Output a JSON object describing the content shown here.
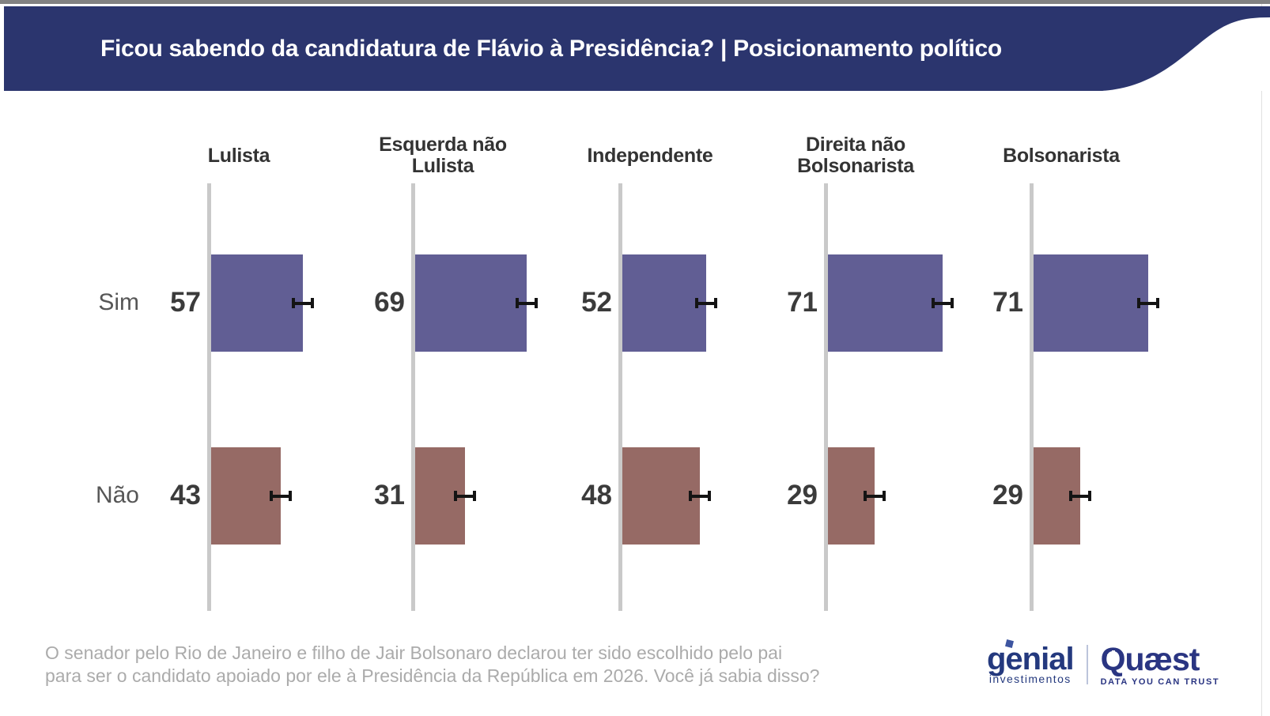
{
  "header": {
    "title": "Ficou sabendo da candidatura de Flávio à Presidência? | Posicionamento político",
    "background": "#2B356E"
  },
  "chart_data": {
    "type": "bar",
    "orientation": "horizontal",
    "title": "Ficou sabendo da candidatura de Flávio à Presidência? | Posicionamento político",
    "categories": [
      "Lulista",
      "Esquerda não Lulista",
      "Independente",
      "Direita não Bolsonarista",
      "Bolsonarista"
    ],
    "rows": [
      "Sim",
      "Não"
    ],
    "series": [
      {
        "name": "Sim",
        "color": "#615E94",
        "values": [
          57,
          69,
          52,
          71,
          71
        ]
      },
      {
        "name": "Não",
        "color": "#966A65",
        "values": [
          43,
          31,
          48,
          29,
          29
        ]
      }
    ],
    "units": "percent",
    "xlim": [
      0,
      100
    ],
    "error_bars_shown": true,
    "axis_color": "#C9C9C9",
    "grid": false,
    "legend": false
  },
  "footer": {
    "line1": "O senador pelo Rio de Janeiro e filho de Jair Bolsonaro declarou ter sido escolhido pelo pai",
    "line2": "para ser o candidato apoiado por ele à Presidência da República em 2026. Você já sabia disso?"
  },
  "logos": {
    "genial": {
      "wordmark": "genial",
      "subtext": "investimentos"
    },
    "quaest": {
      "wordmark": "Quæst",
      "tagline": "DATA YOU CAN TRUST"
    }
  }
}
